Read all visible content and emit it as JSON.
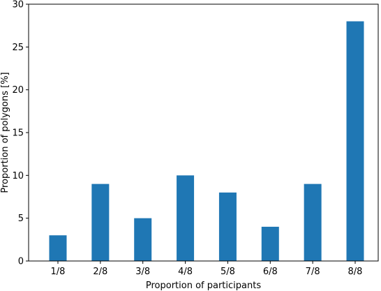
{
  "chart_data": {
    "type": "bar",
    "title": "",
    "xlabel": "Proportion of participants",
    "ylabel": "Proportion of polygons [%]",
    "categories": [
      "1/8",
      "2/8",
      "3/8",
      "4/8",
      "5/8",
      "6/8",
      "7/8",
      "8/8"
    ],
    "values": [
      3,
      9,
      5,
      10,
      8,
      4,
      9,
      28
    ],
    "ylim": [
      0,
      30
    ],
    "yticks": [
      0,
      5,
      10,
      15,
      20,
      25,
      30
    ],
    "grid": false,
    "bar_color": "#1f77b4"
  }
}
